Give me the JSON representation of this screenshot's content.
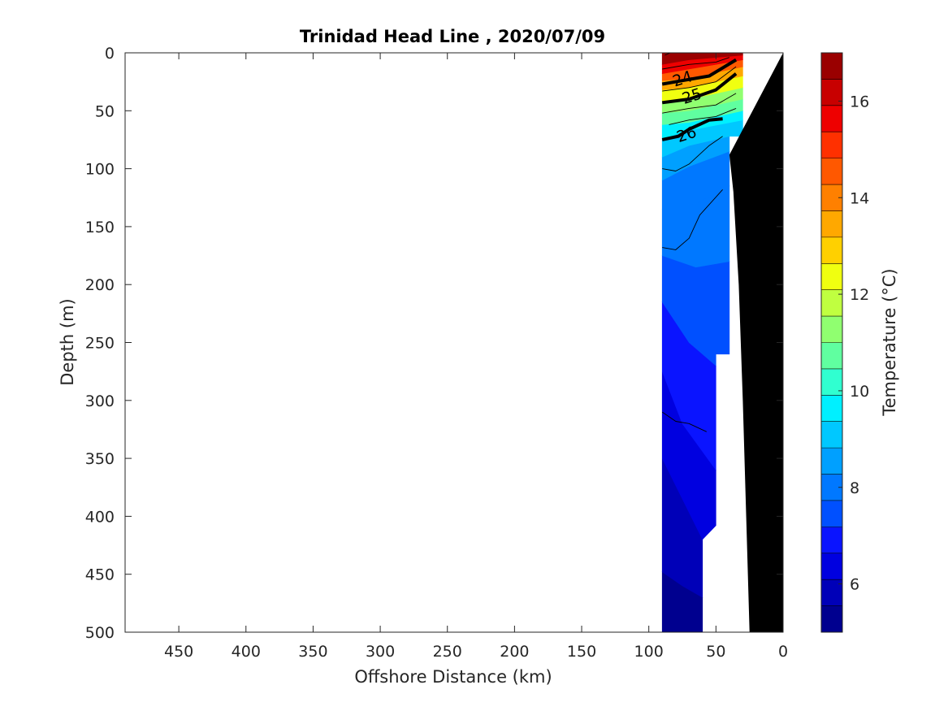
{
  "chart_data": {
    "type": "heatmap",
    "title": "Trinidad Head Line , 2020/07/09",
    "xlabel": "Offshore Distance (km)",
    "ylabel": "Depth (m)",
    "xlim": [
      490,
      0
    ],
    "ylim": [
      0,
      500
    ],
    "x_reversed": true,
    "y_reversed": true,
    "xticks": [
      450,
      400,
      350,
      300,
      250,
      200,
      150,
      100,
      50,
      0
    ],
    "yticks": [
      0,
      50,
      100,
      150,
      200,
      250,
      300,
      350,
      400,
      450,
      500
    ],
    "colorbar": {
      "label": "Temperature (°C)",
      "range": [
        5,
        17
      ],
      "ticks": [
        6,
        8,
        10,
        12,
        14,
        16
      ],
      "colors": [
        "#00008F",
        "#0000B8",
        "#0000E0",
        "#0A14FF",
        "#0050FF",
        "#0078FF",
        "#00A0FF",
        "#00C8FF",
        "#00F0FF",
        "#30FFD0",
        "#60FFA0",
        "#90FF70",
        "#C0FF40",
        "#F0FF10",
        "#FFD000",
        "#FFA800",
        "#FF8000",
        "#FF5800",
        "#FF3000",
        "#EE0000",
        "#C80000",
        "#9A0000"
      ]
    },
    "temperature_bands": [
      {
        "temp_min": 5.0,
        "temp_max": 5.5,
        "depth_polygon_km_m": [
          [
            90,
            500
          ],
          [
            90,
            448
          ],
          [
            75,
            460
          ],
          [
            60,
            470
          ],
          [
            60,
            500
          ]
        ]
      },
      {
        "temp_min": 5.5,
        "temp_max": 6.0,
        "depth_polygon_km_m": [
          [
            90,
            448
          ],
          [
            90,
            350
          ],
          [
            75,
            385
          ],
          [
            60,
            420
          ],
          [
            60,
            470
          ],
          [
            75,
            460
          ]
        ]
      },
      {
        "temp_min": 6.0,
        "temp_max": 6.5,
        "depth_polygon_km_m": [
          [
            90,
            350
          ],
          [
            90,
            275
          ],
          [
            75,
            320
          ],
          [
            50,
            360
          ],
          [
            50,
            408
          ],
          [
            60,
            420
          ],
          [
            75,
            385
          ]
        ]
      },
      {
        "temp_min": 6.5,
        "temp_max": 7.0,
        "depth_polygon_km_m": [
          [
            90,
            275
          ],
          [
            90,
            215
          ],
          [
            70,
            250
          ],
          [
            50,
            270
          ],
          [
            50,
            360
          ],
          [
            75,
            320
          ]
        ]
      },
      {
        "temp_min": 7.0,
        "temp_max": 7.5,
        "depth_polygon_km_m": [
          [
            90,
            215
          ],
          [
            90,
            175
          ],
          [
            65,
            185
          ],
          [
            40,
            180
          ],
          [
            40,
            260
          ],
          [
            50,
            260
          ],
          [
            50,
            270
          ],
          [
            70,
            250
          ]
        ]
      },
      {
        "temp_min": 7.5,
        "temp_max": 8.0,
        "depth_polygon_km_m": [
          [
            90,
            175
          ],
          [
            90,
            135
          ],
          [
            65,
            130
          ],
          [
            40,
            115
          ],
          [
            40,
            180
          ],
          [
            65,
            185
          ]
        ]
      },
      {
        "temp_min": 8.0,
        "temp_max": 8.5,
        "depth_polygon_km_m": [
          [
            90,
            135
          ],
          [
            90,
            110
          ],
          [
            70,
            98
          ],
          [
            40,
            85
          ],
          [
            40,
            115
          ],
          [
            65,
            130
          ]
        ]
      },
      {
        "temp_min": 8.5,
        "temp_max": 9.0,
        "depth_polygon_km_m": [
          [
            90,
            110
          ],
          [
            90,
            90
          ],
          [
            70,
            80
          ],
          [
            40,
            72
          ],
          [
            40,
            85
          ],
          [
            70,
            98
          ]
        ]
      },
      {
        "temp_min": 9.0,
        "temp_max": 9.5,
        "depth_polygon_km_m": [
          [
            90,
            90
          ],
          [
            90,
            75
          ],
          [
            75,
            68
          ],
          [
            30,
            58
          ],
          [
            30,
            72
          ],
          [
            40,
            72
          ],
          [
            70,
            80
          ]
        ]
      },
      {
        "temp_min": 9.5,
        "temp_max": 10.0,
        "depth_polygon_km_m": [
          [
            90,
            75
          ],
          [
            90,
            62
          ],
          [
            70,
            60
          ],
          [
            30,
            50
          ],
          [
            30,
            58
          ],
          [
            75,
            68
          ]
        ]
      },
      {
        "temp_min": 10.0,
        "temp_max": 11.0,
        "depth_polygon_km_m": [
          [
            90,
            62
          ],
          [
            90,
            52
          ],
          [
            70,
            50
          ],
          [
            30,
            40
          ],
          [
            30,
            50
          ],
          [
            70,
            60
          ]
        ]
      },
      {
        "temp_min": 11.0,
        "temp_max": 12.0,
        "depth_polygon_km_m": [
          [
            90,
            52
          ],
          [
            90,
            42
          ],
          [
            70,
            40
          ],
          [
            30,
            30
          ],
          [
            30,
            40
          ],
          [
            70,
            50
          ]
        ]
      },
      {
        "temp_min": 12.0,
        "temp_max": 13.0,
        "depth_polygon_km_m": [
          [
            90,
            42
          ],
          [
            90,
            32
          ],
          [
            70,
            30
          ],
          [
            30,
            20
          ],
          [
            30,
            30
          ],
          [
            70,
            40
          ]
        ]
      },
      {
        "temp_min": 13.0,
        "temp_max": 14.0,
        "depth_polygon_km_m": [
          [
            90,
            32
          ],
          [
            90,
            24
          ],
          [
            70,
            22
          ],
          [
            30,
            12
          ],
          [
            30,
            20
          ],
          [
            70,
            30
          ]
        ]
      },
      {
        "temp_min": 14.0,
        "temp_max": 15.0,
        "depth_polygon_km_m": [
          [
            90,
            24
          ],
          [
            90,
            18
          ],
          [
            70,
            14
          ],
          [
            30,
            6
          ],
          [
            30,
            12
          ],
          [
            70,
            22
          ]
        ]
      },
      {
        "temp_min": 15.0,
        "temp_max": 16.0,
        "depth_polygon_km_m": [
          [
            90,
            18
          ],
          [
            90,
            10
          ],
          [
            70,
            6
          ],
          [
            30,
            2
          ],
          [
            30,
            6
          ],
          [
            70,
            14
          ]
        ]
      },
      {
        "temp_min": 16.0,
        "temp_max": 17.0,
        "depth_polygon_km_m": [
          [
            90,
            10
          ],
          [
            90,
            0
          ],
          [
            30,
            0
          ],
          [
            30,
            2
          ],
          [
            70,
            6
          ]
        ]
      }
    ],
    "seafloor_polygon_km_m": [
      [
        0,
        0
      ],
      [
        0,
        500
      ],
      [
        25,
        500
      ],
      [
        27,
        420
      ],
      [
        30,
        300
      ],
      [
        33,
        200
      ],
      [
        37,
        120
      ],
      [
        40,
        88
      ],
      [
        0,
        0
      ]
    ],
    "density_contours": [
      {
        "label": "24",
        "bold": true,
        "points": [
          [
            90,
            27
          ],
          [
            75,
            24
          ],
          [
            55,
            20
          ],
          [
            35,
            6
          ]
        ],
        "label_at": [
          75,
          22
        ]
      },
      {
        "label": "25",
        "bold": true,
        "points": [
          [
            90,
            43
          ],
          [
            70,
            40
          ],
          [
            50,
            32
          ],
          [
            35,
            18
          ]
        ],
        "label_at": [
          68,
          37
        ]
      },
      {
        "label": "26",
        "bold": true,
        "points": [
          [
            90,
            75
          ],
          [
            78,
            72
          ],
          [
            70,
            66
          ],
          [
            55,
            58
          ],
          [
            45,
            57
          ]
        ],
        "label_at": [
          72,
          70
        ]
      },
      {
        "label": "",
        "bold": false,
        "points": [
          [
            90,
            14
          ],
          [
            70,
            10
          ],
          [
            50,
            8
          ],
          [
            40,
            4
          ]
        ]
      },
      {
        "label": "",
        "bold": false,
        "points": [
          [
            90,
            33
          ],
          [
            70,
            30
          ],
          [
            50,
            25
          ],
          [
            35,
            12
          ]
        ]
      },
      {
        "label": "",
        "bold": false,
        "points": [
          [
            90,
            52
          ],
          [
            70,
            48
          ],
          [
            50,
            45
          ],
          [
            35,
            35
          ]
        ]
      },
      {
        "label": "",
        "bold": false,
        "points": [
          [
            85,
            62
          ],
          [
            70,
            58
          ],
          [
            50,
            55
          ],
          [
            35,
            48
          ]
        ]
      },
      {
        "label": "",
        "bold": false,
        "points": [
          [
            90,
            100
          ],
          [
            80,
            102
          ],
          [
            70,
            96
          ],
          [
            55,
            80
          ],
          [
            45,
            72
          ]
        ]
      },
      {
        "label": "",
        "bold": false,
        "points": [
          [
            90,
            168
          ],
          [
            80,
            170
          ],
          [
            70,
            160
          ],
          [
            62,
            140
          ],
          [
            45,
            118
          ]
        ]
      },
      {
        "label": "",
        "bold": false,
        "points": [
          [
            90,
            310
          ],
          [
            80,
            318
          ],
          [
            70,
            320
          ],
          [
            57,
            327
          ]
        ]
      },
      {
        "label": "",
        "bold": false,
        "points": [
          [
            88,
            2
          ],
          [
            84,
            0
          ]
        ]
      }
    ]
  }
}
